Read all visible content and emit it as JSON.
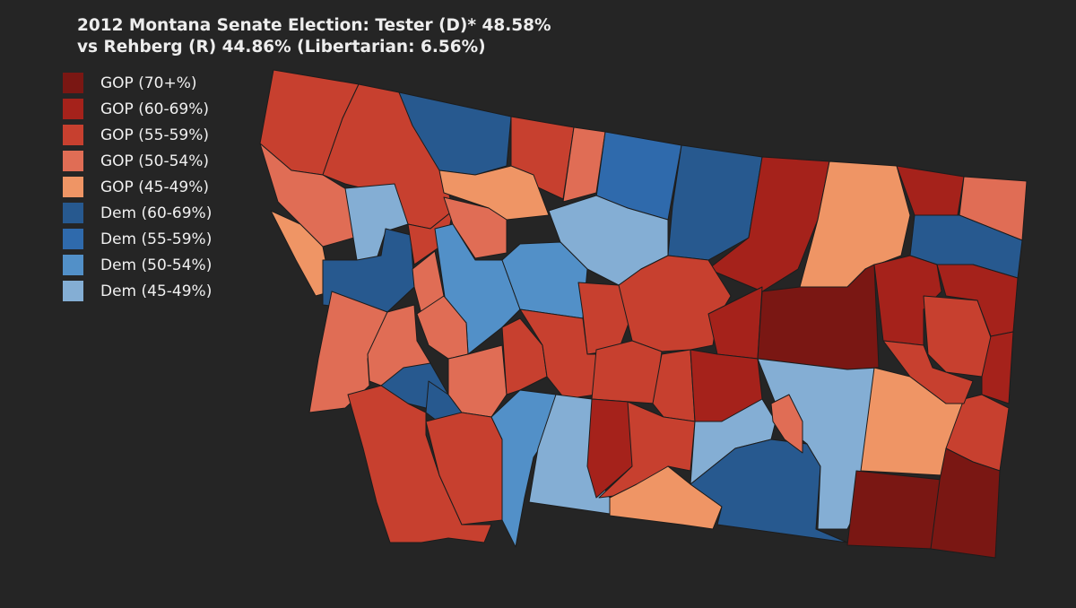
{
  "title": {
    "line1": "2012 Montana Senate Election: Tester (D)* 48.58%",
    "line2": "vs Rehberg (R) 44.86% (Libertarian: 6.56%)"
  },
  "colors": {
    "background": "#252525",
    "gop70": "#7a1713",
    "gop60": "#a5221b",
    "gop55": "#c7402f",
    "gop50": "#e06d55",
    "gop45": "#ef9565",
    "dem60": "#27598f",
    "dem55": "#2f6aac",
    "dem50": "#5290c8",
    "dem45": "#84aed4"
  },
  "legend": [
    {
      "label": "GOP (70+%)",
      "color": "#7a1713"
    },
    {
      "label": "GOP (60-69%)",
      "color": "#a5221b"
    },
    {
      "label": "GOP (55-59%)",
      "color": "#c7402f"
    },
    {
      "label": "GOP (50-54%)",
      "color": "#e06d55"
    },
    {
      "label": "GOP (45-49%)",
      "color": "#ef9565"
    },
    {
      "label": "Dem (60-69%)",
      "color": "#27598f"
    },
    {
      "label": "Dem (55-59%)",
      "color": "#2f6aac"
    },
    {
      "label": "Dem (50-54%)",
      "color": "#5290c8"
    },
    {
      "label": "Dem (45-49%)",
      "color": "#84aed4"
    }
  ]
}
